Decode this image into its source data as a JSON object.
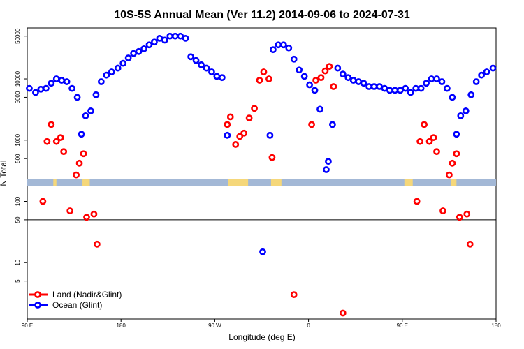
{
  "chart_data": {
    "type": "scatter",
    "title": "10S-5S Annual Mean (Ver 11.2)   2014-09-06 to 2024-07-31",
    "xlabel": "Longitude (deg E)",
    "ylabel": "N Total",
    "x_axis": {
      "range_deg_east": [
        90,
        540
      ],
      "ticks": [
        {
          "value": 90,
          "label": "90 E"
        },
        {
          "value": 180,
          "label": "180"
        },
        {
          "value": 270,
          "label": "90 W"
        },
        {
          "value": 360,
          "label": "0"
        },
        {
          "value": 450,
          "label": "90 E"
        },
        {
          "value": 540,
          "label": "180"
        }
      ]
    },
    "y_axis": {
      "scale": "log",
      "ticks": [
        {
          "value": 5,
          "label": "5"
        },
        {
          "value": 10,
          "label": "10"
        },
        {
          "value": 50,
          "label": "50"
        },
        {
          "value": 100,
          "label": "100"
        },
        {
          "value": 500,
          "label": "500"
        },
        {
          "value": 1000,
          "label": "1000"
        },
        {
          "value": 5000,
          "label": "5000"
        },
        {
          "value": 10000,
          "label": "10000"
        },
        {
          "value": 50000,
          "label": "50000"
        }
      ]
    },
    "reference_line": {
      "y": 50
    },
    "map_strip": {
      "y_range": [
        150,
        215
      ],
      "ocean_color": "#a3b8d6",
      "land_color": "#f5d77a"
    },
    "legend": {
      "position": "bottom-left"
    },
    "series": [
      {
        "name": "Land (Nadir&Glint)",
        "color": "#ff0000",
        "points": [
          [
            105,
            100
          ],
          [
            109,
            950
          ],
          [
            113,
            1800
          ],
          [
            118,
            950
          ],
          [
            122,
            1100
          ],
          [
            125,
            650
          ],
          [
            131,
            70
          ],
          [
            137,
            270
          ],
          [
            140,
            420
          ],
          [
            144,
            600
          ],
          [
            147,
            55
          ],
          [
            154,
            62
          ],
          [
            157,
            20
          ],
          [
            282,
            1800
          ],
          [
            285,
            2400
          ],
          [
            290,
            850
          ],
          [
            294,
            1150
          ],
          [
            298,
            1300
          ],
          [
            303,
            2300
          ],
          [
            308,
            3300
          ],
          [
            313,
            9500
          ],
          [
            317,
            13000
          ],
          [
            322,
            10000
          ],
          [
            325,
            520
          ],
          [
            346,
            3
          ],
          [
            363,
            1800
          ],
          [
            367,
            9500
          ],
          [
            372,
            10500
          ],
          [
            376,
            13500
          ],
          [
            380,
            16000
          ],
          [
            384,
            7500
          ],
          [
            393,
            1.5
          ],
          [
            464,
            100
          ],
          [
            467,
            950
          ],
          [
            471,
            1800
          ],
          [
            476,
            950
          ],
          [
            480,
            1100
          ],
          [
            483,
            650
          ],
          [
            489,
            70
          ],
          [
            495,
            270
          ],
          [
            498,
            420
          ],
          [
            502,
            600
          ],
          [
            505,
            55
          ],
          [
            512,
            62
          ],
          [
            515,
            20
          ]
        ]
      },
      {
        "name": "Ocean (Glint)",
        "color": "#0000ff",
        "points": [
          [
            92,
            7000
          ],
          [
            98,
            6000
          ],
          [
            103,
            6800
          ],
          [
            108,
            7000
          ],
          [
            113,
            8500
          ],
          [
            118,
            10000
          ],
          [
            123,
            9500
          ],
          [
            128,
            9000
          ],
          [
            133,
            7000
          ],
          [
            138,
            5000
          ],
          [
            142,
            1250
          ],
          [
            146,
            2500
          ],
          [
            151,
            3000
          ],
          [
            156,
            5500
          ],
          [
            161,
            9000
          ],
          [
            166,
            11500
          ],
          [
            171,
            13000
          ],
          [
            177,
            15000
          ],
          [
            182,
            18000
          ],
          [
            187,
            22000
          ],
          [
            192,
            26000
          ],
          [
            197,
            28000
          ],
          [
            202,
            31000
          ],
          [
            207,
            36000
          ],
          [
            212,
            40000
          ],
          [
            217,
            46000
          ],
          [
            222,
            43000
          ],
          [
            227,
            50000
          ],
          [
            232,
            50000
          ],
          [
            237,
            50000
          ],
          [
            242,
            46000
          ],
          [
            247,
            23000
          ],
          [
            252,
            20000
          ],
          [
            257,
            17000
          ],
          [
            262,
            15000
          ],
          [
            267,
            13000
          ],
          [
            272,
            11000
          ],
          [
            277,
            10500
          ],
          [
            282,
            1200
          ],
          [
            316,
            15
          ],
          [
            323,
            1200
          ],
          [
            326,
            30000
          ],
          [
            331,
            36000
          ],
          [
            336,
            36000
          ],
          [
            341,
            32000
          ],
          [
            346,
            21000
          ],
          [
            351,
            14000
          ],
          [
            356,
            11000
          ],
          [
            361,
            8000
          ],
          [
            366,
            6500
          ],
          [
            371,
            3200
          ],
          [
            377,
            330
          ],
          [
            379,
            450
          ],
          [
            383,
            1800
          ],
          [
            388,
            15000
          ],
          [
            393,
            12000
          ],
          [
            398,
            10500
          ],
          [
            403,
            9500
          ],
          [
            408,
            9000
          ],
          [
            413,
            8500
          ],
          [
            418,
            7500
          ],
          [
            423,
            7500
          ],
          [
            428,
            7500
          ],
          [
            433,
            7000
          ],
          [
            438,
            6500
          ],
          [
            443,
            6500
          ],
          [
            448,
            6500
          ],
          [
            453,
            7000
          ],
          [
            458,
            6000
          ],
          [
            463,
            7000
          ],
          [
            468,
            7000
          ],
          [
            473,
            8500
          ],
          [
            478,
            10000
          ],
          [
            483,
            10000
          ],
          [
            488,
            9000
          ],
          [
            493,
            7000
          ],
          [
            498,
            5000
          ],
          [
            502,
            1250
          ],
          [
            506,
            2500
          ],
          [
            511,
            3000
          ],
          [
            516,
            5500
          ],
          [
            521,
            9000
          ],
          [
            526,
            11500
          ],
          [
            531,
            13000
          ],
          [
            537,
            15000
          ]
        ]
      }
    ]
  }
}
